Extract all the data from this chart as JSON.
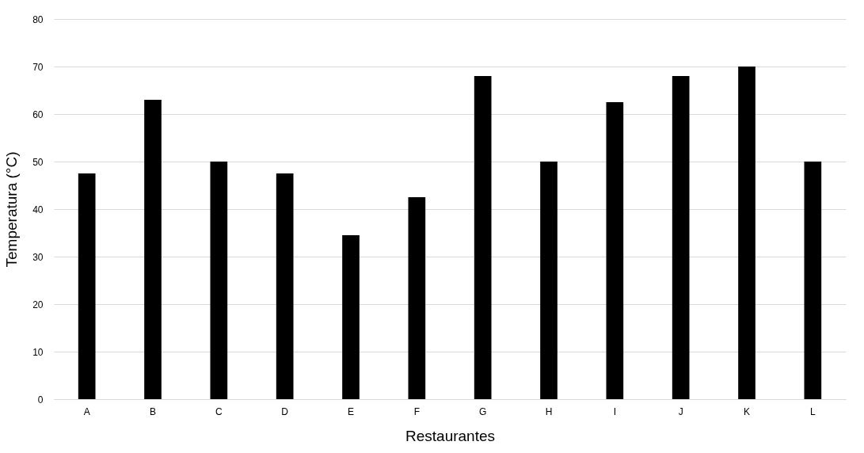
{
  "chart_data": {
    "type": "bar",
    "xlabel": "Restaurantes",
    "ylabel": "Temperatura (°C)",
    "categories": [
      "A",
      "B",
      "C",
      "D",
      "E",
      "F",
      "G",
      "H",
      "I",
      "J",
      "K",
      "L"
    ],
    "values": [
      47.5,
      63,
      50,
      47.5,
      34.5,
      42.5,
      68,
      50,
      62.5,
      68,
      70,
      50
    ],
    "color": "#000000",
    "ylim": [
      0,
      80
    ],
    "yticks": [
      0,
      10,
      20,
      30,
      40,
      50,
      60,
      70,
      80
    ],
    "grid": "y"
  }
}
